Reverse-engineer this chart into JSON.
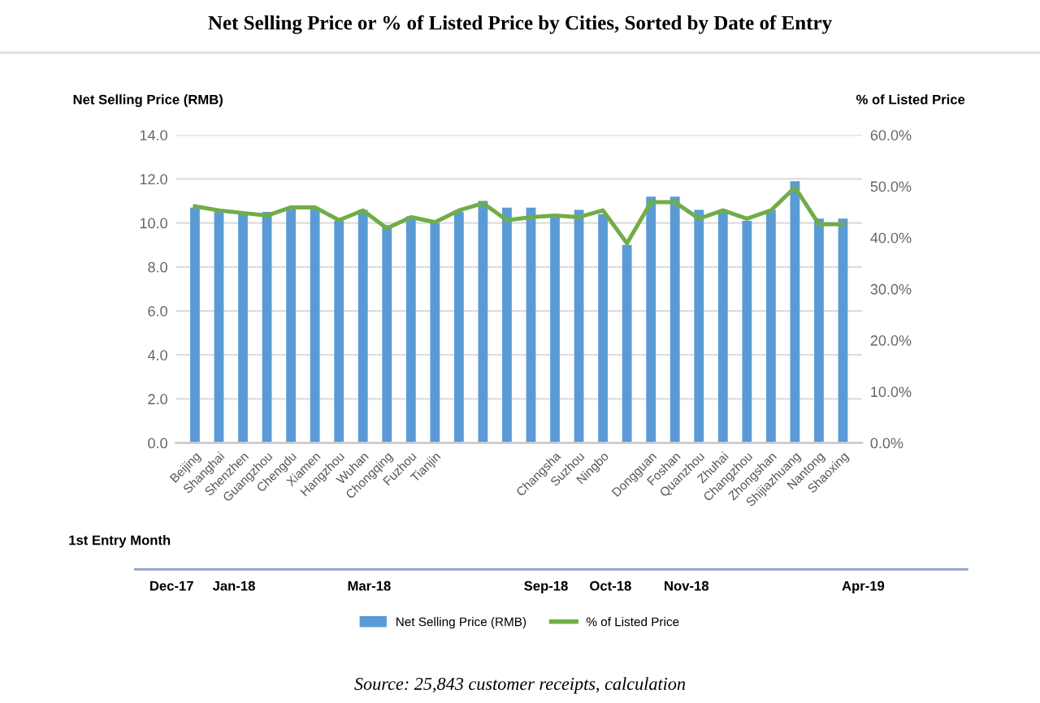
{
  "chart_data": {
    "type": "bar",
    "title": "Net Selling Price or % of Listed Price by Cities, Sorted by Date of Entry",
    "categories": [
      "Beijing",
      "Shanghai",
      "Shenzhen",
      "Guangzhou",
      "Chengdu",
      "Xiamen",
      "Hangzhou",
      "Wuhan",
      "Chongqing",
      "Fuzhou",
      "Tianjin",
      null,
      null,
      null,
      null,
      "Changsha",
      "Suzhou",
      "Ningbo",
      null,
      "Dongguan",
      "Foshan",
      "Quanzhou",
      "Zhuhai",
      "Changzhou",
      "Zhongshan",
      "Shijiazhuang",
      "Nantong",
      "Shaoxing"
    ],
    "series": [
      {
        "name": "Net Selling Price (RMB)",
        "color": "#5b9bd5",
        "values": [
          10.7,
          10.5,
          10.4,
          10.5,
          10.7,
          10.7,
          10.1,
          10.6,
          9.9,
          10.3,
          10.0,
          10.5,
          11.0,
          10.7,
          10.7,
          10.3,
          10.6,
          10.4,
          9.0,
          11.2,
          11.2,
          10.6,
          10.6,
          10.1,
          10.6,
          11.9,
          10.2,
          10.2
        ]
      },
      {
        "name": "% of Listed Price",
        "type": "line",
        "axis": "y2",
        "color": "#70ad47",
        "values": [
          46.1,
          45.3,
          44.8,
          44.3,
          45.9,
          45.9,
          43.4,
          45.3,
          41.8,
          44.0,
          43.0,
          45.3,
          46.7,
          43.4,
          44.0,
          44.3,
          44.0,
          45.3,
          38.9,
          46.9,
          46.9,
          43.7,
          45.3,
          43.7,
          45.3,
          49.8,
          42.6,
          42.6
        ]
      }
    ],
    "ylabel": "Net Selling Price (RMB)",
    "y2label": "% of Listed Price",
    "ylim": [
      0,
      14
    ],
    "yticks": [
      {
        "value": 0,
        "label": "0.0"
      },
      {
        "value": 2,
        "label": "2.0"
      },
      {
        "value": 4,
        "label": "4.0"
      },
      {
        "value": 6,
        "label": "6.0"
      },
      {
        "value": 8,
        "label": "8.0"
      },
      {
        "value": 10,
        "label": "10.0"
      },
      {
        "value": 12,
        "label": "12.0"
      },
      {
        "value": 14,
        "label": "14.0"
      }
    ],
    "y2lim": [
      0,
      60
    ],
    "y2ticks": [
      {
        "value": 0,
        "label": "0.0%"
      },
      {
        "value": 10,
        "label": "10.0%"
      },
      {
        "value": 20,
        "label": "20.0%"
      },
      {
        "value": 30,
        "label": "30.0%"
      },
      {
        "value": 40,
        "label": "40.0%"
      },
      {
        "value": 50,
        "label": "50.0%"
      },
      {
        "value": 60,
        "label": "60.0%"
      }
    ],
    "grid": "y",
    "legend": "bottom",
    "marker": "none",
    "line_style": "solid",
    "annotations": [
      "1st Entry Month",
      "Dec-17",
      "Jan-18",
      "Mar-18",
      "Sep-18",
      "Oct-18",
      "Nov-18",
      "Apr-19",
      "Source: 25,843 customer receipts, calculation"
    ]
  }
}
